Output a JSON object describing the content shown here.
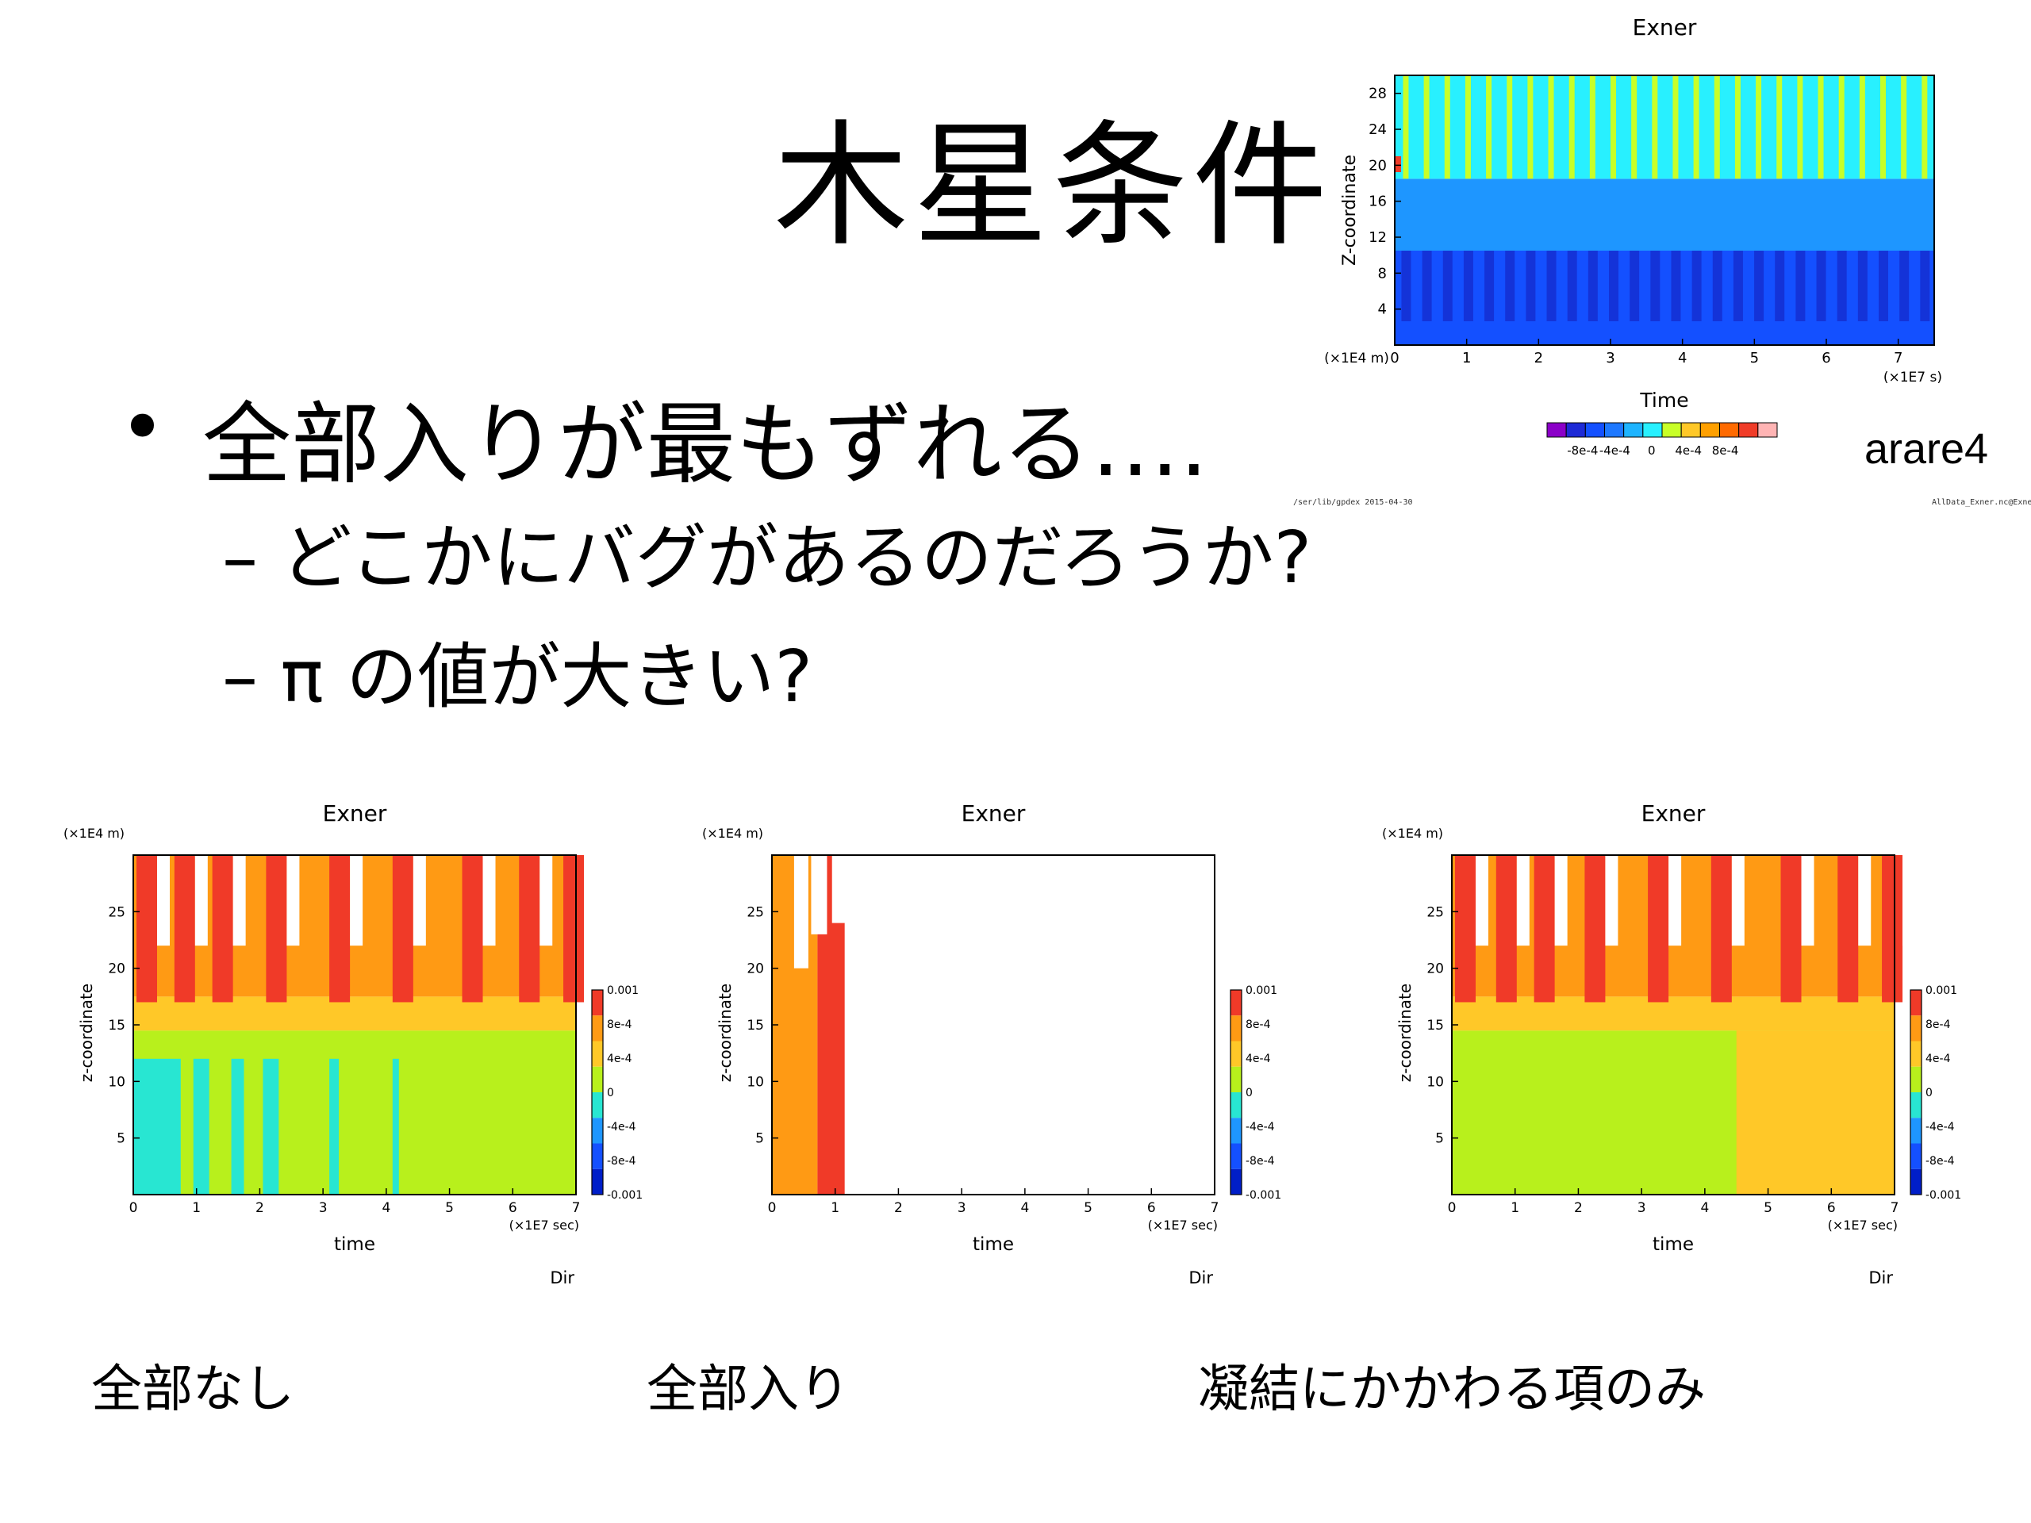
{
  "slide": {
    "title": "木星条件",
    "bullets": [
      {
        "marker": "•",
        "text": "全部入りが最もずれる…."
      },
      {
        "marker": "–",
        "text": "どこかにバグがあるのだろうか?"
      },
      {
        "marker": "–",
        "text": "π の値が大きい?"
      }
    ],
    "tag": "arare4",
    "footer_left": "/ser/lib/gpdex 2015-04-30",
    "footer_right": "AllData_Exner.nc@Exner",
    "captions": [
      "全部なし",
      "全部入り",
      "凝結にかかわる項のみ"
    ]
  },
  "colors": {
    "palette": [
      "#8b00c8",
      "#1e2ad6",
      "#1450ff",
      "#1e78ff",
      "#1eb4ff",
      "#28f0ff",
      "#c8ff28",
      "#ffc828",
      "#ffa000",
      "#ff6a00",
      "#f03c28",
      "#ffb4b4"
    ],
    "contour": [
      "#001ec8",
      "#1450ff",
      "#1e96ff",
      "#28e6d2",
      "#b8f01c",
      "#ffc828",
      "#ff9a14",
      "#f03a28"
    ]
  },
  "chart_data": [
    {
      "id": "top",
      "type": "heatmap",
      "title": "Exner",
      "xlabel": "Time",
      "ylabel": "Z-coordinate",
      "x_unit": "(×1E7 s)",
      "y_unit": "(×1E4 m)",
      "xlim": [
        0,
        7.5
      ],
      "ylim": [
        0,
        30
      ],
      "x_ticks": [
        "0",
        "1",
        "2",
        "3",
        "4",
        "5",
        "6",
        "7"
      ],
      "y_ticks": [
        "4",
        "8",
        "12",
        "16",
        "20",
        "24",
        "28"
      ],
      "colorbar_ticks": [
        "-8e-4",
        "-4e-4",
        "0",
        "4e-4",
        "8e-4"
      ],
      "layers": [
        {
          "band": [
            0,
            10.5
          ],
          "level": "-6e-4"
        },
        {
          "band": [
            10.5,
            18.5
          ],
          "level": "-3e-4"
        },
        {
          "band": [
            18.5,
            30
          ],
          "level": "0"
        }
      ],
      "pulse_count": 26,
      "pulse_level": "2e-4"
    },
    {
      "id": "none",
      "type": "heatmap",
      "title": "Exner",
      "xlabel": "time",
      "ylabel": "z-coordinate",
      "x_unit": "(×1E7 sec)",
      "y_unit": "(×1E4 m)",
      "footnote": "Dir",
      "xlim": [
        0,
        7
      ],
      "ylim": [
        0,
        30
      ],
      "x_ticks": [
        "0",
        "1",
        "2",
        "3",
        "4",
        "5",
        "6",
        "7"
      ],
      "y_ticks": [
        "5",
        "10",
        "15",
        "20",
        "25"
      ],
      "colorbar_ticks": [
        "0.001",
        "8e-4",
        "4e-4",
        "0",
        "-4e-4",
        "-8e-4",
        "-0.001"
      ],
      "layers": [
        {
          "band": [
            0,
            14.5
          ],
          "level": "1e-4"
        },
        {
          "band": [
            14.5,
            17.5
          ],
          "level": "4e-4"
        },
        {
          "band": [
            17.5,
            30
          ],
          "level": "6e-4"
        }
      ],
      "spike_times": [
        0.05,
        0.65,
        1.25,
        2.1,
        3.1,
        4.1,
        5.2,
        6.1,
        6.8
      ],
      "spike_level": "8e-4",
      "negative_regions": [
        [
          0,
          0.75
        ],
        [
          0.95,
          1.2
        ],
        [
          1.55,
          1.75
        ],
        [
          2.05,
          2.3
        ],
        [
          3.1,
          3.25
        ],
        [
          4.1,
          4.2
        ]
      ]
    },
    {
      "id": "all",
      "type": "heatmap",
      "title": "Exner",
      "xlabel": "time",
      "ylabel": "z-coordinate",
      "x_unit": "(×1E7 sec)",
      "y_unit": "(×1E4 m)",
      "footnote": "Dir",
      "xlim": [
        0,
        7
      ],
      "ylim": [
        0,
        30
      ],
      "x_ticks": [
        "0",
        "1",
        "2",
        "3",
        "4",
        "5",
        "6",
        "7"
      ],
      "y_ticks": [
        "5",
        "10",
        "15",
        "20",
        "25"
      ],
      "colorbar_ticks": [
        "0.001",
        "8e-4",
        "4e-4",
        "0",
        "-4e-4",
        "-8e-4",
        "-0.001"
      ],
      "data_extent": [
        0,
        1.15
      ],
      "layers": [
        {
          "x": [
            0,
            0.72
          ],
          "band": [
            0,
            30
          ],
          "level": "6e-4"
        },
        {
          "x": [
            0.72,
            1.15
          ],
          "band": [
            0,
            30
          ],
          "level": "8e-4"
        }
      ]
    },
    {
      "id": "cond",
      "type": "heatmap",
      "title": "Exner",
      "xlabel": "time",
      "ylabel": "z-coordinate",
      "x_unit": "(×1E7 sec)",
      "y_unit": "(×1E4 m)",
      "footnote": "Dir",
      "xlim": [
        0,
        7
      ],
      "ylim": [
        0,
        30
      ],
      "x_ticks": [
        "0",
        "1",
        "2",
        "3",
        "4",
        "5",
        "6",
        "7"
      ],
      "y_ticks": [
        "5",
        "10",
        "15",
        "20",
        "25"
      ],
      "colorbar_ticks": [
        "0.001",
        "8e-4",
        "4e-4",
        "0",
        "-4e-4",
        "-8e-4",
        "-0.001"
      ],
      "layers": [
        {
          "band": [
            0,
            14.5
          ],
          "level": "1e-4"
        },
        {
          "band": [
            14.5,
            17.5
          ],
          "level": "4e-4"
        },
        {
          "band": [
            17.5,
            30
          ],
          "level": "6e-4"
        }
      ],
      "shift_time": 4.5,
      "shift_level": "4e-4",
      "spike_times": [
        0.05,
        0.7,
        1.3,
        2.1,
        3.1,
        4.1,
        5.2,
        6.1,
        6.8
      ],
      "spike_level": "8e-4"
    }
  ]
}
